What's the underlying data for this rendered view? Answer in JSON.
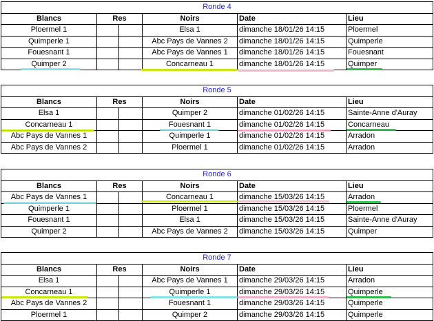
{
  "headers": {
    "blancs": "Blancs",
    "res": "Res",
    "noirs": "Noirs",
    "date": "Date",
    "lieu": "Lieu"
  },
  "colors": {
    "cyan": "#7fe8f0",
    "lime": "#c8f000",
    "pink": "#f7b0c8",
    "green": "#20c040",
    "title": "#1a1aff"
  },
  "rounds": [
    {
      "title": "Ronde 4",
      "rows": [
        {
          "blancs": "Ploermel 1",
          "noirs": "Elsa 1",
          "date": "dimanche 18/01/26 14:15",
          "lieu": "Ploermel"
        },
        {
          "blancs": "Quimperle 1",
          "noirs": "Abc Pays de Vannes 2",
          "date": "dimanche 18/01/26 14:15",
          "lieu": "Quimperle"
        },
        {
          "blancs": "Fouesnant 1",
          "noirs": "Abc Pays de Vannes 1",
          "date": "dimanche 18/01/26 14:15",
          "lieu": "Fouesnant"
        },
        {
          "blancs": "Quimper 2",
          "noirs": "Concarneau 1",
          "date": "dimanche 18/01/26 14:15",
          "lieu": "Quimper"
        }
      ]
    },
    {
      "title": "Ronde 5",
      "rows": [
        {
          "blancs": "Elsa 1",
          "noirs": "Quimper 2",
          "date": "dimanche 01/02/26 14:15",
          "lieu": "Sainte-Anne d'Auray"
        },
        {
          "blancs": "Concarneau 1",
          "noirs": "Fouesnant 1",
          "date": "dimanche 01/02/26 14:15",
          "lieu": "Concarneau"
        },
        {
          "blancs": "Abc Pays de Vannes 1",
          "noirs": "Quimperle 1",
          "date": "dimanche 01/02/26 14:15",
          "lieu": "Arradon"
        },
        {
          "blancs": "Abc Pays de Vannes 2",
          "noirs": "Ploermel 1",
          "date": "dimanche 01/02/26 14:15",
          "lieu": "Arradon"
        }
      ]
    },
    {
      "title": "Ronde 6",
      "rows": [
        {
          "blancs": "Abc Pays de Vannes 1",
          "noirs": "Concarneau 1",
          "date": "dimanche 15/03/26 14:15",
          "lieu": "Arradon"
        },
        {
          "blancs": "Quimperle 1",
          "noirs": "Ploermel 1",
          "date": "dimanche 15/03/26 14:15",
          "lieu": "Ploermel"
        },
        {
          "blancs": "Fouesnant 1",
          "noirs": "Elsa 1",
          "date": "dimanche 15/03/26 14:15",
          "lieu": "Sainte-Anne d'Auray"
        },
        {
          "blancs": "Quimper 2",
          "noirs": "Abc Pays de Vannes 2",
          "date": "dimanche 15/03/26 14:15",
          "lieu": "Quimper"
        }
      ]
    },
    {
      "title": "Ronde 7",
      "rows": [
        {
          "blancs": "Elsa 1",
          "noirs": "Abc Pays de Vannes 1",
          "date": "dimanche 29/03/26 14:15",
          "lieu": "Arradon"
        },
        {
          "blancs": "Concarneau 1",
          "noirs": "Quimperle 1",
          "date": "dimanche 29/03/26 14:15",
          "lieu": "Quimperle"
        },
        {
          "blancs": "Abc Pays de Vannes 2",
          "noirs": "Fouesnant 1",
          "date": "dimanche 29/03/26 14:15",
          "lieu": "Quimperle"
        },
        {
          "blancs": "Ploermel 1",
          "noirs": "Quimper 2",
          "date": "dimanche 29/03/26 14:15",
          "lieu": "Quimperle"
        }
      ]
    }
  ]
}
